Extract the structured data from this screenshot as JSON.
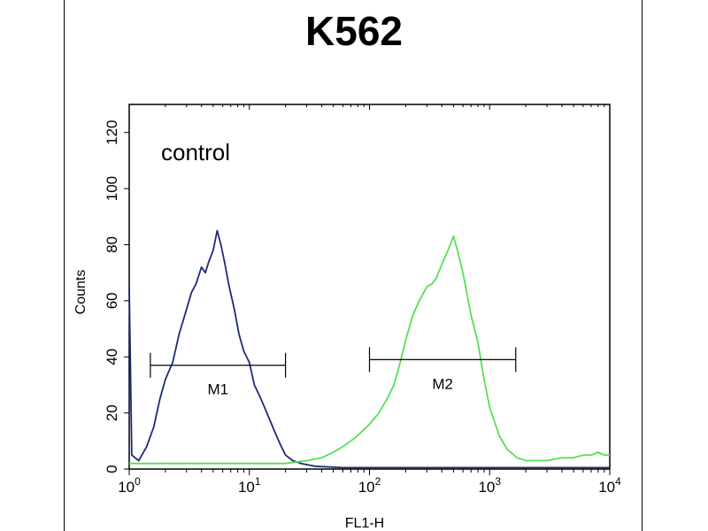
{
  "chart_data": {
    "type": "line",
    "title": "K562",
    "xlabel": "FL1-H",
    "ylabel": "Counts",
    "x_scale": "log",
    "xlim": [
      1,
      10000
    ],
    "ylim": [
      0,
      130
    ],
    "x_ticks": [
      {
        "value": 1,
        "base": "10",
        "exp": "0"
      },
      {
        "value": 10,
        "base": "10",
        "exp": "1"
      },
      {
        "value": 100,
        "base": "10",
        "exp": "2"
      },
      {
        "value": 1000,
        "base": "10",
        "exp": "3"
      },
      {
        "value": 10000,
        "base": "10",
        "exp": "4"
      }
    ],
    "y_ticks": [
      "0",
      "20",
      "40",
      "60",
      "80",
      "100",
      "120"
    ],
    "annotation": "control",
    "series": [
      {
        "color": "#1f2a7a",
        "points": [
          [
            1,
            65
          ],
          [
            1.05,
            5
          ],
          [
            1.2,
            3
          ],
          [
            1.4,
            8
          ],
          [
            1.6,
            15
          ],
          [
            1.8,
            25
          ],
          [
            2,
            32
          ],
          [
            2.3,
            38
          ],
          [
            2.6,
            48
          ],
          [
            3,
            57
          ],
          [
            3.3,
            63
          ],
          [
            3.6,
            66
          ],
          [
            4,
            72
          ],
          [
            4.3,
            70
          ],
          [
            4.6,
            74
          ],
          [
            5,
            78
          ],
          [
            5.4,
            85
          ],
          [
            5.8,
            80
          ],
          [
            6.2,
            74
          ],
          [
            6.8,
            65
          ],
          [
            7.5,
            57
          ],
          [
            8.2,
            48
          ],
          [
            9,
            42
          ],
          [
            10,
            38
          ],
          [
            11,
            30
          ],
          [
            12.5,
            25
          ],
          [
            14,
            20
          ],
          [
            16,
            14
          ],
          [
            18,
            9
          ],
          [
            20,
            5
          ],
          [
            23,
            3
          ],
          [
            27,
            2
          ],
          [
            35,
            1
          ],
          [
            60,
            0.5
          ],
          [
            1000,
            0.5
          ],
          [
            10000,
            0.5
          ]
        ]
      },
      {
        "color": "#55e055",
        "points": [
          [
            1,
            2
          ],
          [
            3,
            2
          ],
          [
            10,
            2
          ],
          [
            20,
            2
          ],
          [
            30,
            3
          ],
          [
            40,
            4
          ],
          [
            50,
            6
          ],
          [
            60,
            8
          ],
          [
            70,
            10
          ],
          [
            80,
            12
          ],
          [
            100,
            16
          ],
          [
            120,
            20
          ],
          [
            140,
            25
          ],
          [
            160,
            30
          ],
          [
            180,
            38
          ],
          [
            200,
            46
          ],
          [
            230,
            55
          ],
          [
            260,
            60
          ],
          [
            300,
            65
          ],
          [
            330,
            66
          ],
          [
            360,
            68
          ],
          [
            400,
            73
          ],
          [
            450,
            78
          ],
          [
            500,
            83
          ],
          [
            540,
            78
          ],
          [
            600,
            70
          ],
          [
            650,
            62
          ],
          [
            700,
            55
          ],
          [
            800,
            45
          ],
          [
            900,
            32
          ],
          [
            1000,
            22
          ],
          [
            1200,
            12
          ],
          [
            1400,
            7
          ],
          [
            1700,
            4
          ],
          [
            2000,
            3
          ],
          [
            3000,
            3
          ],
          [
            4000,
            4
          ],
          [
            5000,
            4
          ],
          [
            6000,
            5
          ],
          [
            7000,
            5
          ],
          [
            8000,
            6
          ],
          [
            9000,
            5
          ],
          [
            10000,
            5
          ]
        ]
      }
    ],
    "markers": [
      {
        "label": "M1",
        "x_start": 1.5,
        "x_end": 20,
        "y": 37
      },
      {
        "label": "M2",
        "x_start": 100,
        "x_end": 1650,
        "y": 39
      }
    ]
  }
}
